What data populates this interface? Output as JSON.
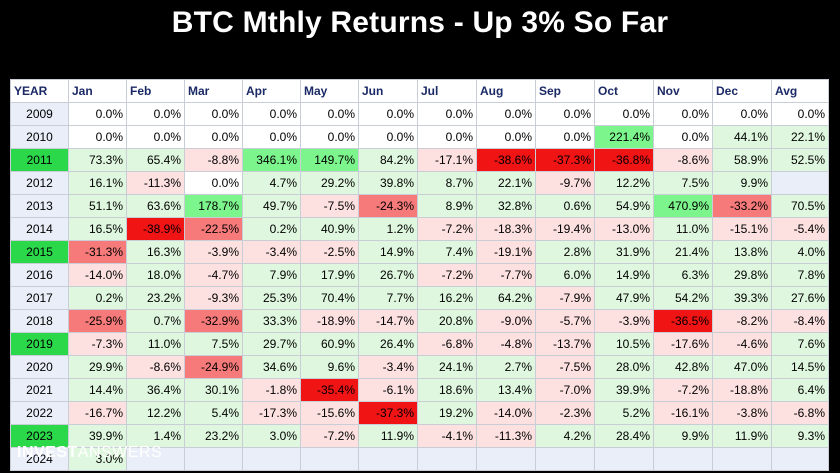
{
  "title": "BTC Mthly Returns - Up 3% So Far",
  "brand": {
    "bold": "INVEST",
    "light": "ANSWERS"
  },
  "colors": {
    "cell_base": "#e9eef8",
    "year_highlight": "#2bd84a",
    "strong_green": "#7cf58c",
    "light_green": "#dff7df",
    "strong_red": "#f01414",
    "red": "#f77a7a",
    "light_red": "#fde1e1"
  },
  "chart_data": {
    "type": "table",
    "title": "BTC Mthly Returns - Up 3% So Far",
    "columns": [
      "YEAR",
      "Jan",
      "Feb",
      "Mar",
      "Apr",
      "May",
      "Jun",
      "Jul",
      "Aug",
      "Sep",
      "Oct",
      "Nov",
      "Dec",
      "Avg"
    ],
    "highlight_years": [
      "2011",
      "2015",
      "2019",
      "2023"
    ],
    "rows": [
      [
        "2009",
        "0.0%",
        "0.0%",
        "0.0%",
        "0.0%",
        "0.0%",
        "0.0%",
        "0.0%",
        "0.0%",
        "0.0%",
        "0.0%",
        "0.0%",
        "0.0%",
        "0.0%"
      ],
      [
        "2010",
        "0.0%",
        "0.0%",
        "0.0%",
        "0.0%",
        "0.0%",
        "0.0%",
        "0.0%",
        "0.0%",
        "0.0%",
        "221.4%",
        "0.0%",
        "44.1%",
        "22.1%"
      ],
      [
        "2011",
        "73.3%",
        "65.4%",
        "-8.8%",
        "346.1%",
        "149.7%",
        "84.2%",
        "-17.1%",
        "-38.6%",
        "-37.3%",
        "-36.8%",
        "-8.6%",
        "58.9%",
        "52.5%"
      ],
      [
        "2012",
        "16.1%",
        "-11.3%",
        "0.0%",
        "4.7%",
        "29.2%",
        "39.8%",
        "8.7%",
        "22.1%",
        "-9.7%",
        "12.2%",
        "7.5%",
        "9.9%",
        ""
      ],
      [
        "2013",
        "51.1%",
        "63.6%",
        "178.7%",
        "49.7%",
        "-7.5%",
        "-24.3%",
        "8.9%",
        "32.8%",
        "0.6%",
        "54.9%",
        "470.9%",
        "-33.2%",
        "70.5%"
      ],
      [
        "2014",
        "16.5%",
        "-38.9%",
        "-22.5%",
        "0.2%",
        "40.9%",
        "1.2%",
        "-7.2%",
        "-18.3%",
        "-19.4%",
        "-13.0%",
        "11.0%",
        "-15.1%",
        "-5.4%"
      ],
      [
        "2015",
        "-31.3%",
        "16.3%",
        "-3.9%",
        "-3.4%",
        "-2.5%",
        "14.9%",
        "7.4%",
        "-19.1%",
        "2.8%",
        "31.9%",
        "21.4%",
        "13.8%",
        "4.0%"
      ],
      [
        "2016",
        "-14.0%",
        "18.0%",
        "-4.7%",
        "7.9%",
        "17.9%",
        "26.7%",
        "-7.2%",
        "-7.7%",
        "6.0%",
        "14.9%",
        "6.3%",
        "29.8%",
        "7.8%"
      ],
      [
        "2017",
        "0.2%",
        "23.2%",
        "-9.3%",
        "25.3%",
        "70.4%",
        "7.7%",
        "16.2%",
        "64.2%",
        "-7.9%",
        "47.9%",
        "54.2%",
        "39.3%",
        "27.6%"
      ],
      [
        "2018",
        "-25.9%",
        "0.7%",
        "-32.9%",
        "33.3%",
        "-18.9%",
        "-14.7%",
        "20.8%",
        "-9.0%",
        "-5.7%",
        "-3.9%",
        "-36.5%",
        "-8.2%",
        "-8.4%"
      ],
      [
        "2019",
        "-7.3%",
        "11.0%",
        "7.5%",
        "29.7%",
        "60.9%",
        "26.4%",
        "-6.8%",
        "-4.8%",
        "-13.7%",
        "10.5%",
        "-17.6%",
        "-4.6%",
        "7.6%"
      ],
      [
        "2020",
        "29.9%",
        "-8.6%",
        "-24.9%",
        "34.6%",
        "9.6%",
        "-3.4%",
        "24.1%",
        "2.7%",
        "-7.5%",
        "28.0%",
        "42.8%",
        "47.0%",
        "14.5%"
      ],
      [
        "2021",
        "14.4%",
        "36.4%",
        "30.1%",
        "-1.8%",
        "-35.4%",
        "-6.1%",
        "18.6%",
        "13.4%",
        "-7.0%",
        "39.9%",
        "-7.2%",
        "-18.8%",
        "6.4%"
      ],
      [
        "2022",
        "-16.7%",
        "12.2%",
        "5.4%",
        "-17.3%",
        "-15.6%",
        "-37.3%",
        "19.2%",
        "-14.0%",
        "-2.3%",
        "5.2%",
        "-16.1%",
        "-3.8%",
        "-6.8%"
      ],
      [
        "2023",
        "39.9%",
        "1.4%",
        "23.2%",
        "3.0%",
        "-7.2%",
        "11.9%",
        "-4.1%",
        "-11.3%",
        "4.2%",
        "28.4%",
        "9.9%",
        "11.9%",
        "9.3%"
      ],
      [
        "2024",
        "3.0%",
        "",
        "",
        "",
        "",
        "",
        "",
        "",
        "",
        "",
        "",
        "",
        ""
      ]
    ]
  }
}
